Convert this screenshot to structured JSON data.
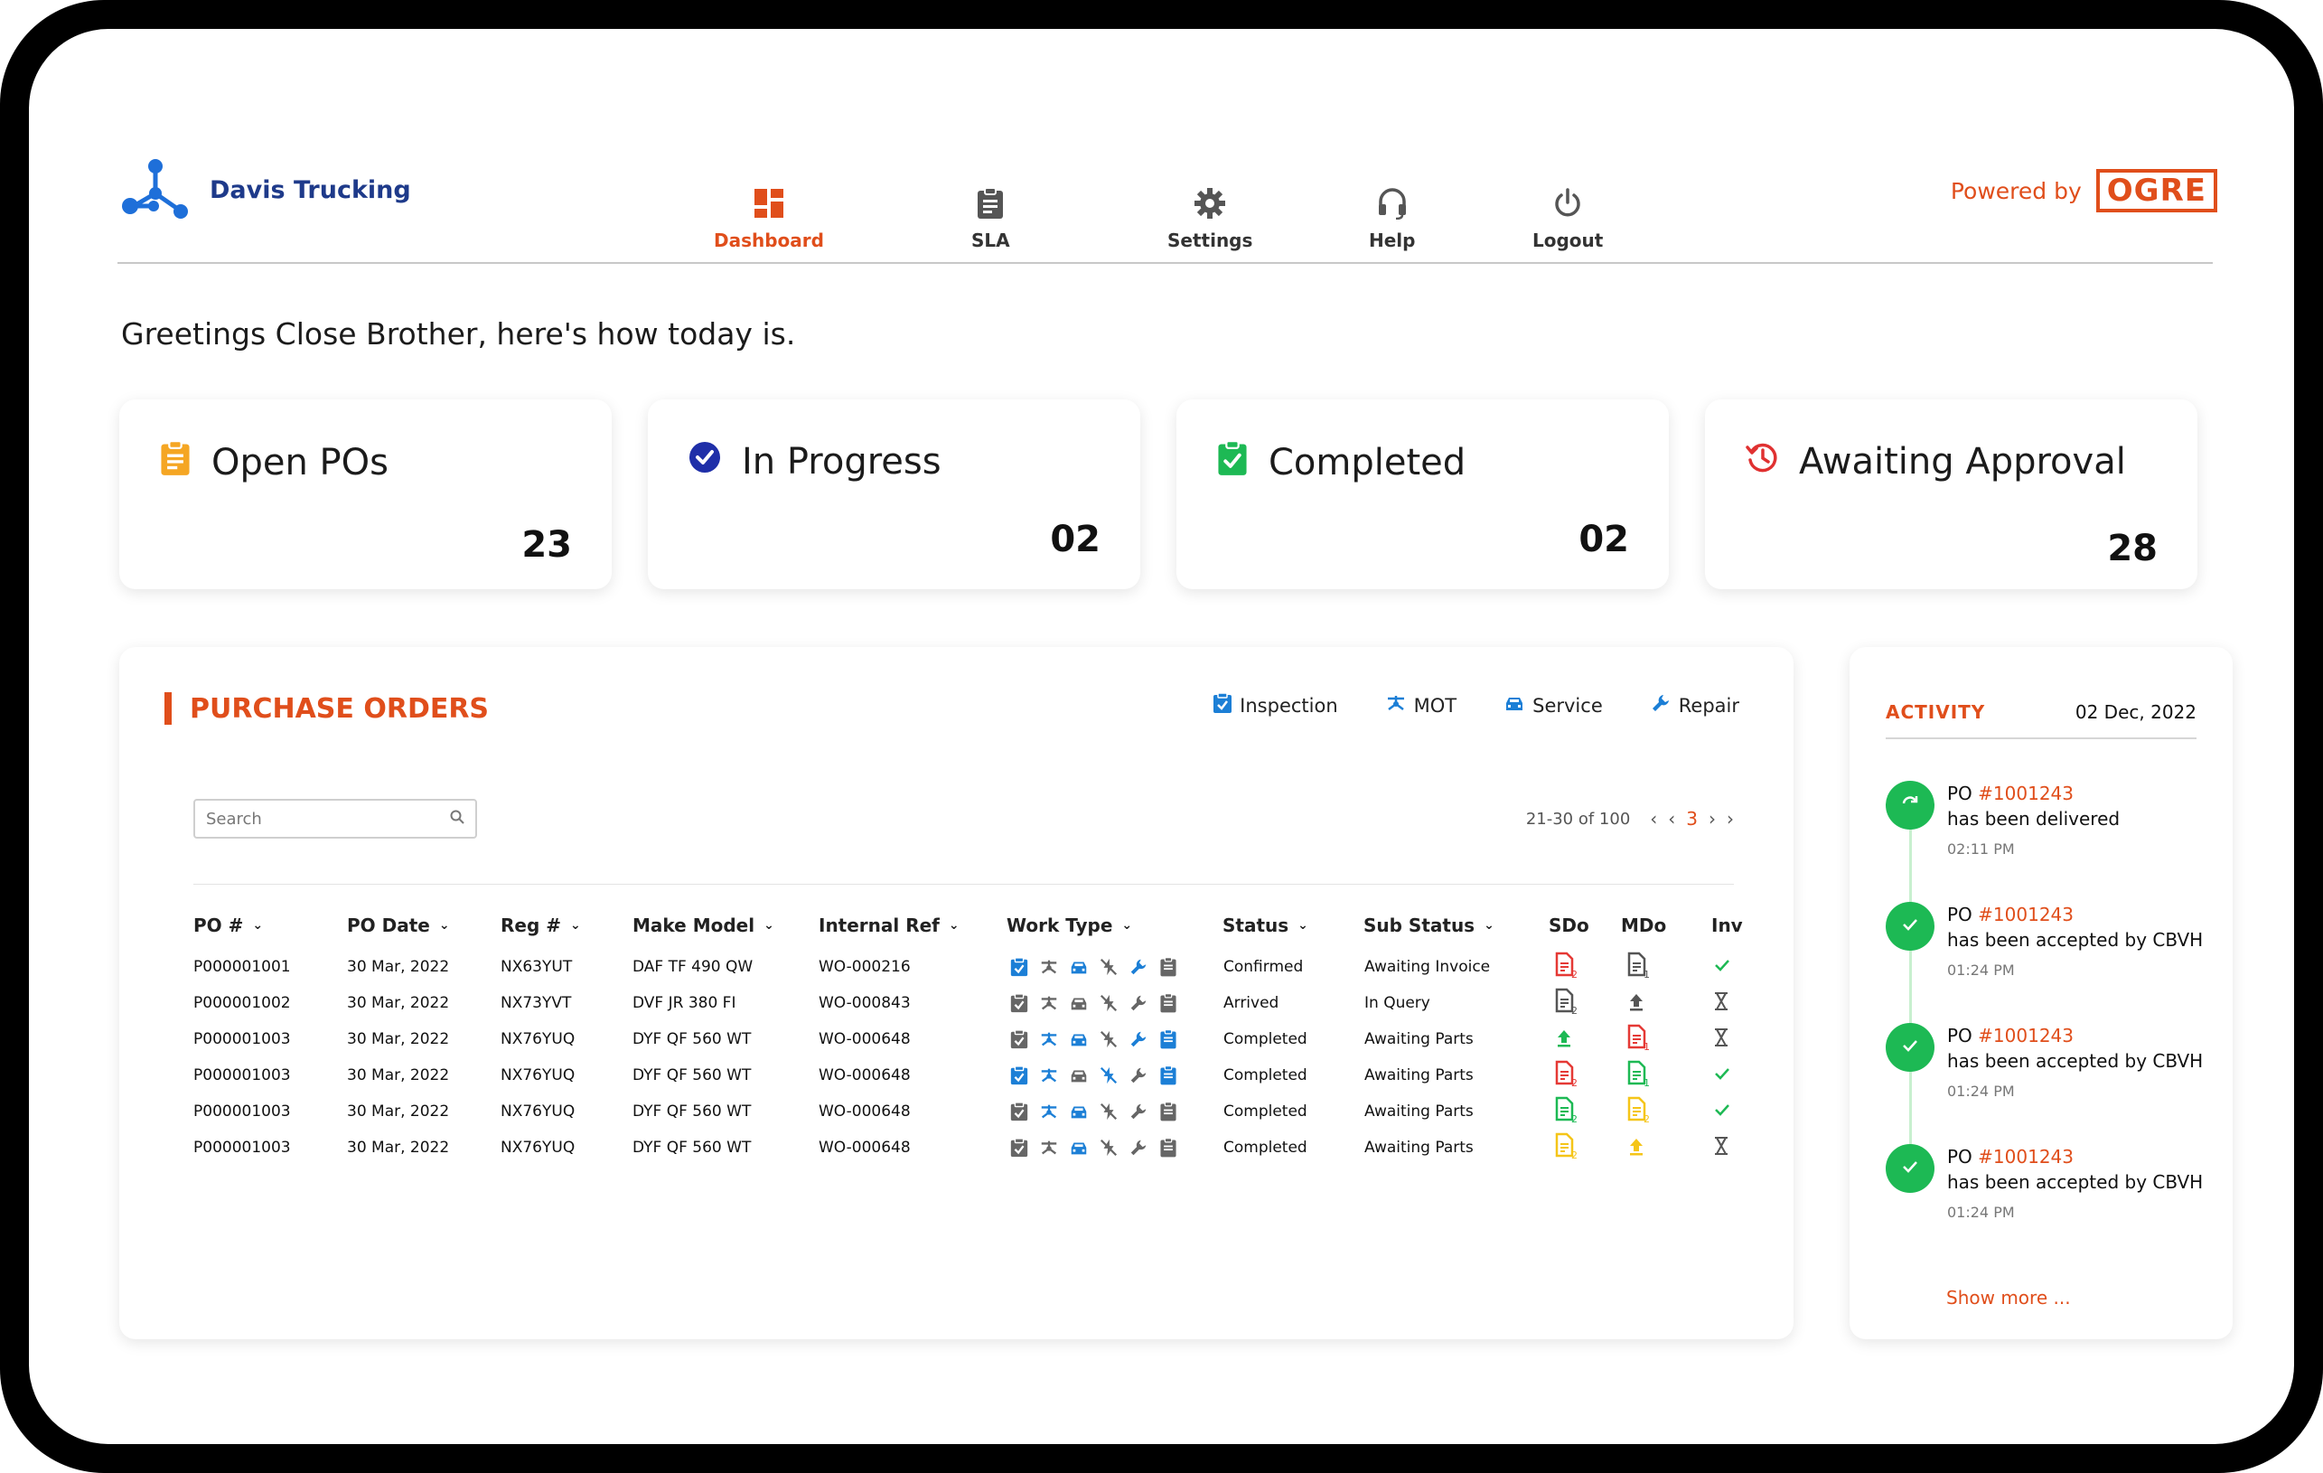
{
  "brand": {
    "name": "Davis Trucking"
  },
  "nav": [
    {
      "label": "Dashboard",
      "icon": "dashboard-icon",
      "active": true
    },
    {
      "label": "SLA",
      "icon": "clipboard-icon"
    },
    {
      "label": "Settings",
      "icon": "gear-icon"
    },
    {
      "label": "Help",
      "icon": "headset-icon"
    },
    {
      "label": "Logout",
      "icon": "power-icon"
    }
  ],
  "powered": {
    "label": "Powered by",
    "logo": "OGRE"
  },
  "greeting": "Greetings Close Brother, here's how today is.",
  "cards": [
    {
      "title": "Open POs",
      "count": "23",
      "icon": "clipboard-icon",
      "color": "#f5a623"
    },
    {
      "title": "In Progress",
      "count": "02",
      "icon": "check-circle-icon",
      "color": "#1f2fa8"
    },
    {
      "title": "Completed",
      "count": "02",
      "icon": "clipboard-check-icon",
      "color": "#1db954"
    },
    {
      "title": "Awaiting Approval",
      "count": "28",
      "icon": "history-icon",
      "color": "#e03131"
    }
  ],
  "purchase_orders": {
    "title": "PURCHASE ORDERS",
    "legend": [
      {
        "label": "Inspection",
        "icon": "inspection-icon"
      },
      {
        "label": "MOT",
        "icon": "mot-icon"
      },
      {
        "label": "Service",
        "icon": "car-icon"
      },
      {
        "label": "Repair",
        "icon": "wrench-icon"
      }
    ],
    "search_placeholder": "Search",
    "pagination": {
      "range": "21-30 of 100",
      "current": "3"
    },
    "columns": [
      "PO #",
      "PO Date",
      "Reg #",
      "Make Model",
      "Internal Ref",
      "Work Type",
      "Status",
      "Sub Status",
      "SDo",
      "MDo",
      "Inv"
    ],
    "rows": [
      {
        "po": "P000001001",
        "date": "30 Mar, 2022",
        "reg": "NX63YUT",
        "model": "DAF TF 490 QW",
        "ref": "WO-000216",
        "status": "Confirmed",
        "sub": "Awaiting Invoice",
        "sdo": "doc-red-2",
        "mdo": "doc-gray-1",
        "inv": "check"
      },
      {
        "po": "P000001002",
        "date": "30 Mar, 2022",
        "reg": "NX73YVT",
        "model": "DVF JR 380 FI",
        "ref": "WO-000843",
        "status": "Arrived",
        "sub": "In Query",
        "sdo": "doc-gray-2",
        "mdo": "upload-gray",
        "inv": "hourglass"
      },
      {
        "po": "P000001003",
        "date": "30 Mar, 2022",
        "reg": "NX76YUQ",
        "model": "DYF QF 560 WT",
        "ref": "WO-000648",
        "status": "Completed",
        "sub": "Awaiting Parts",
        "sdo": "upload-green",
        "mdo": "doc-red-1",
        "inv": "hourglass"
      },
      {
        "po": "P000001003",
        "date": "30 Mar, 2022",
        "reg": "NX76YUQ",
        "model": "DYF QF 560 WT",
        "ref": "WO-000648",
        "status": "Completed",
        "sub": "Awaiting Parts",
        "sdo": "doc-red-2",
        "mdo": "doc-green-1",
        "inv": "check"
      },
      {
        "po": "P000001003",
        "date": "30 Mar, 2022",
        "reg": "NX76YUQ",
        "model": "DYF QF 560 WT",
        "ref": "WO-000648",
        "status": "Completed",
        "sub": "Awaiting Parts",
        "sdo": "doc-green-2",
        "mdo": "doc-yellow-2",
        "inv": "check"
      },
      {
        "po": "P000001003",
        "date": "30 Mar, 2022",
        "reg": "NX76YUQ",
        "model": "DYF QF 560 WT",
        "ref": "WO-000648",
        "status": "Completed",
        "sub": "Awaiting Parts",
        "sdo": "doc-yellow-2",
        "mdo": "upload-yellow",
        "inv": "hourglass"
      }
    ]
  },
  "activity": {
    "title": "ACTIVITY",
    "date": "02 Dec, 2022",
    "items": [
      {
        "prefix": "PO ",
        "po": "#1001243",
        "text": "has been delivered",
        "time": "02:11 PM",
        "icon": "refresh-icon"
      },
      {
        "prefix": "PO ",
        "po": "#1001243",
        "text": "has been accepted by CBVH",
        "time": "01:24 PM",
        "icon": "check-icon"
      },
      {
        "prefix": "PO ",
        "po": "#1001243",
        "text": "has been accepted by CBVH",
        "time": "01:24 PM",
        "icon": "check-icon"
      },
      {
        "prefix": "PO ",
        "po": "#1001243",
        "text": "has been accepted by CBVH",
        "time": "01:24 PM",
        "icon": "check-icon"
      }
    ],
    "show_more": "Show more ..."
  },
  "colors": {
    "accent": "#e04e1b",
    "brand": "#1e3a8a",
    "success": "#1db954",
    "work_active": "#1c7fd6",
    "work_inactive": "#666666"
  }
}
